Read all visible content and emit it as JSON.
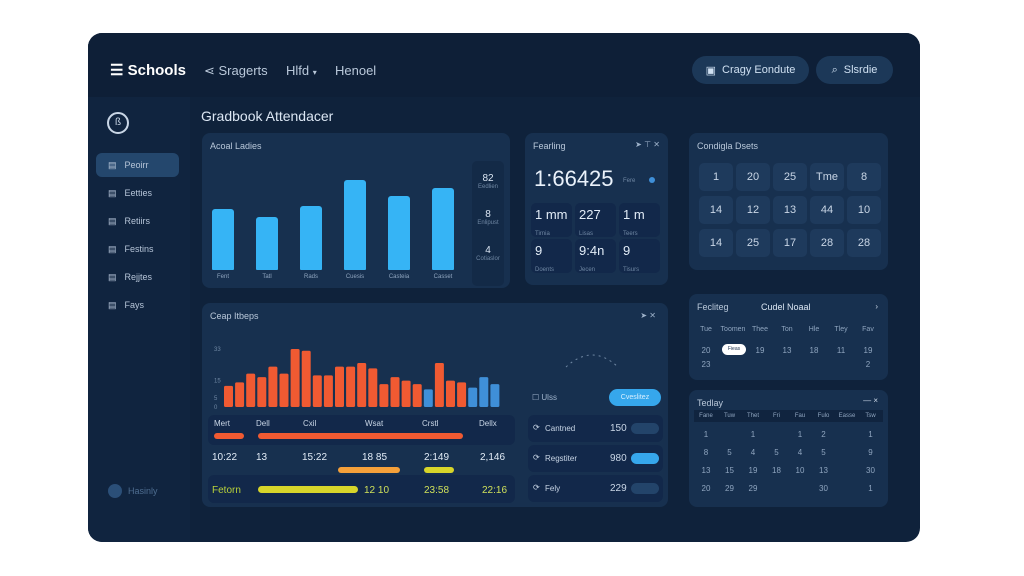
{
  "header": {
    "logo": "Schools",
    "nav": [
      "Sragerts",
      "Hlfd",
      "Henoel"
    ],
    "btn1": "Cragy Eondute",
    "search": "Slsrdie"
  },
  "sidebar": {
    "items": [
      {
        "label": "Peoirr",
        "icon": "grid-icon"
      },
      {
        "label": "Eetties",
        "icon": "user-icon"
      },
      {
        "label": "Retiirs",
        "icon": "folder-icon"
      },
      {
        "label": "Festins",
        "icon": "calendar-icon"
      },
      {
        "label": "Rejjtes",
        "icon": "chart-icon"
      },
      {
        "label": "Fays",
        "icon": "share-icon"
      }
    ],
    "footer": "Hasinly"
  },
  "page_title": "Gradbook Attendacer",
  "attendance": {
    "title": "Acoal Ladies",
    "categories": [
      "Fent",
      "Tatl",
      "Rads",
      "Cuesis",
      "Casteia",
      "Casset"
    ],
    "values": [
      61,
      53,
      64,
      90,
      74,
      82
    ],
    "color": "#36b4f5",
    "side": [
      {
        "v": "82",
        "l": "Eedlien"
      },
      {
        "v": "8",
        "l": "Enlipust"
      },
      {
        "v": "4",
        "l": "Cotiaslor"
      }
    ]
  },
  "reading": {
    "title": "Fearling",
    "big": "1:66425",
    "unit": "Fere",
    "stats": [
      {
        "v": "1 mm",
        "l": "Tirnia"
      },
      {
        "v": "227",
        "l": "Lisas"
      },
      {
        "v": "1 m",
        "l": "Teers"
      },
      {
        "v": "9",
        "l": "Doents"
      },
      {
        "v": "9:4n",
        "l": "Jecen"
      },
      {
        "v": "9",
        "l": "Tisurs"
      }
    ]
  },
  "dates": {
    "title": "Condigla Dsets",
    "cells": [
      "1",
      "20",
      "25",
      "Tme",
      "8",
      "14",
      "12",
      "13",
      "44",
      "10",
      "14",
      "25",
      "17",
      "28",
      "28"
    ]
  },
  "chart_data": {
    "type": "bar",
    "title": "Ceap Itbeps",
    "yticks": [
      "0",
      "5",
      "15",
      "33"
    ],
    "ylim": [
      0,
      33
    ],
    "values": [
      12,
      14,
      19,
      17,
      23,
      19,
      33,
      32,
      18,
      18,
      23,
      23,
      25,
      22,
      13,
      17,
      15,
      13,
      10,
      25,
      15,
      14,
      11,
      17,
      13
    ],
    "colors": [
      "o",
      "o",
      "o",
      "o",
      "o",
      "o",
      "o",
      "o",
      "o",
      "o",
      "o",
      "o",
      "o",
      "o",
      "o",
      "o",
      "o",
      "o",
      "b",
      "o",
      "o",
      "o",
      "b",
      "b",
      "b"
    ],
    "orange": "#f05a32",
    "blue": "#3f8fd8"
  },
  "table": {
    "headers": [
      "Mert",
      "Dell",
      "Cxil",
      "Wsat",
      "Crstl",
      "Dellx"
    ],
    "row2": [
      "10:22",
      "13",
      "15:22",
      "18 85",
      "2:149",
      "2,146"
    ],
    "row3": [
      "Fetorn",
      "12 10",
      "23:58",
      "22:16"
    ]
  },
  "right_list": {
    "view": "Ulss",
    "view_btn": "Cveslitez",
    "items": [
      {
        "icon": "refresh-icon",
        "label": "Cantned",
        "v": "150",
        "on": false
      },
      {
        "icon": "link-icon",
        "label": "Regstiter",
        "v": "980",
        "on": true
      },
      {
        "icon": "undo-icon",
        "label": "Fely",
        "v": "229",
        "on": false
      }
    ]
  },
  "schedule": {
    "title": "Fecliteg",
    "subtitle": "Cudel Noaal",
    "heads": [
      "Tue",
      "Toomen",
      "Thee",
      "Ton",
      "Hle",
      "Tley",
      "Fav"
    ],
    "vals": [
      "20",
      "Fieas",
      "19",
      "13",
      "18",
      "11",
      "19"
    ],
    "vals2": [
      "23",
      "",
      "",
      "",
      "",
      "",
      "2"
    ]
  },
  "holiday": {
    "title": "Tedlay",
    "heads": [
      "Fane",
      "Tuw",
      "Thet",
      "Fri",
      "Fau",
      "Fulo",
      "Easse",
      "Tsw"
    ],
    "rows": [
      [
        "1",
        "",
        "1",
        "",
        "1",
        "2",
        "",
        "1"
      ],
      [
        "8",
        "5",
        "4",
        "5",
        "4",
        "5",
        "",
        "9"
      ],
      [
        "13",
        "15",
        "19",
        "18",
        "10",
        "13",
        "",
        "30"
      ],
      [
        "20",
        "29",
        "29",
        "",
        "",
        "30",
        "",
        "1"
      ]
    ]
  }
}
